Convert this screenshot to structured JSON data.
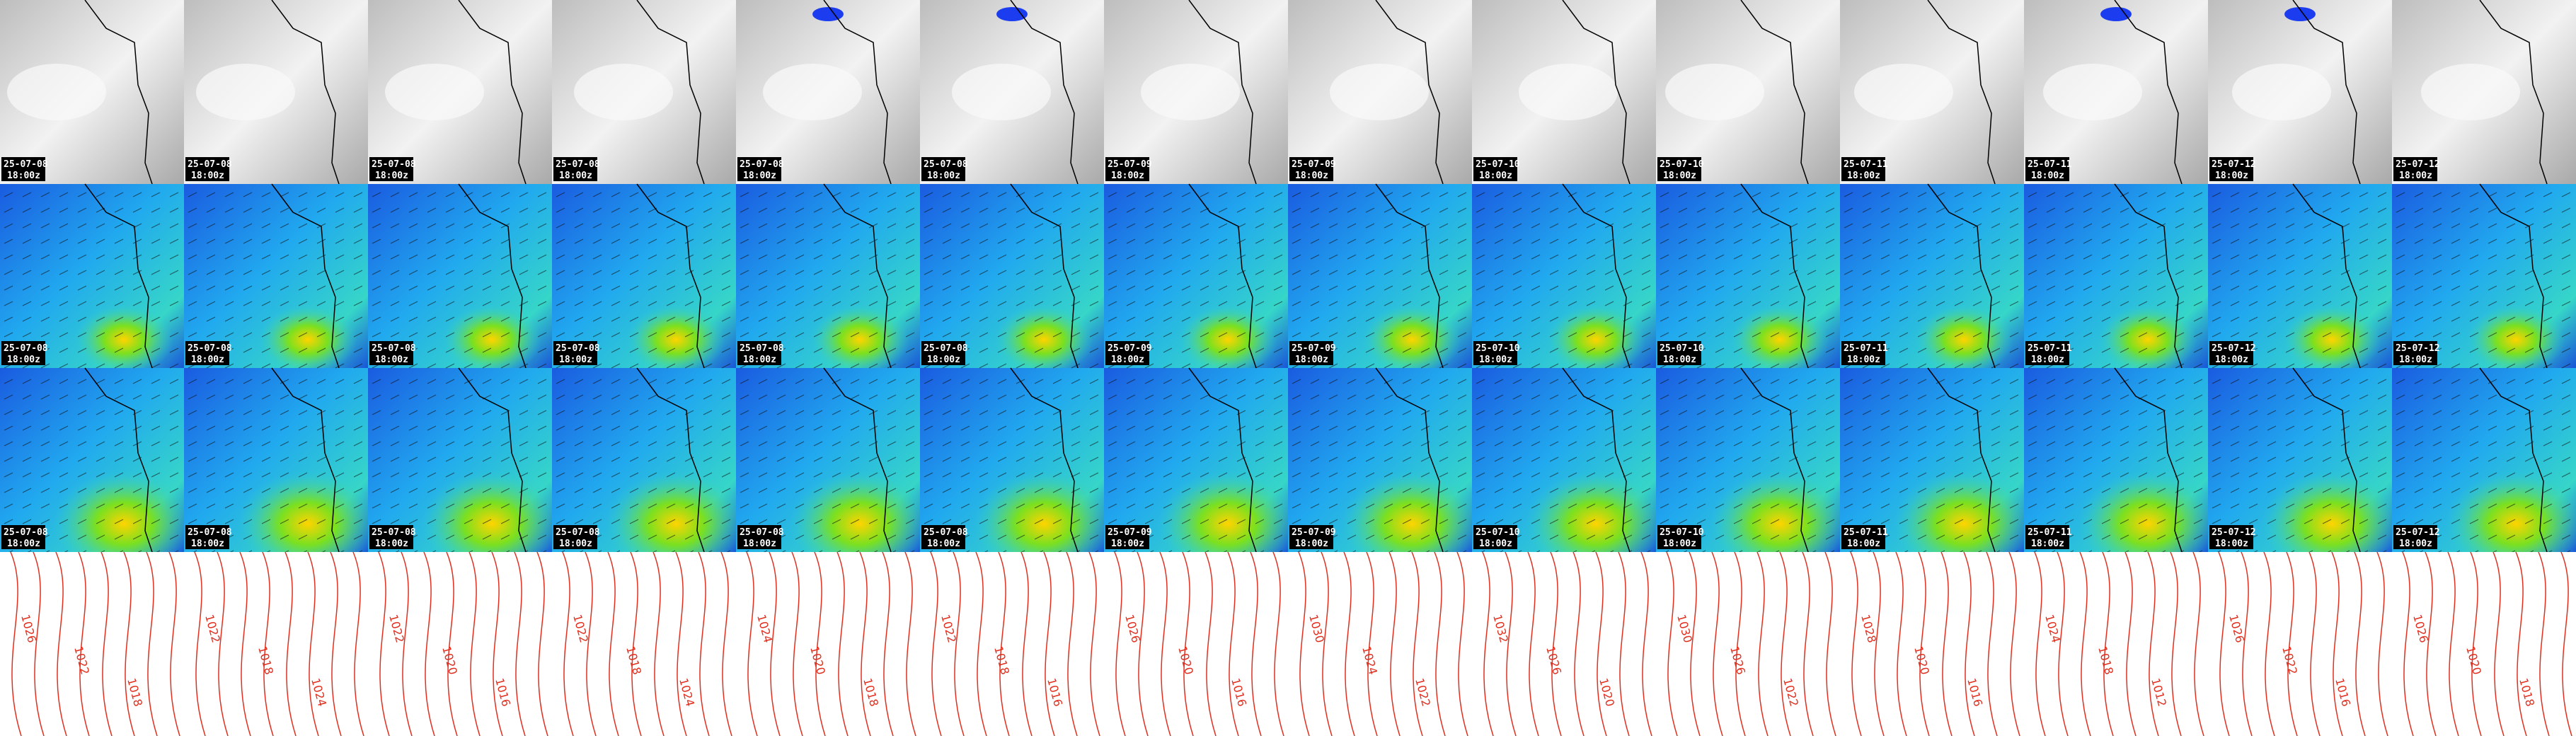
{
  "panels": {
    "dates": [
      "25-07-08",
      "25-07-08",
      "25-07-08",
      "25-07-08",
      "25-07-08",
      "25-07-08",
      "25-07-09",
      "25-07-09",
      "25-07-10",
      "25-07-10",
      "25-07-11",
      "25-07-11",
      "25-07-12",
      "25-07-12"
    ],
    "times": [
      "18:00z",
      "18:00z",
      "18:00z",
      "18:00z",
      "18:00z",
      "18:00z",
      "18:00z",
      "18:00z",
      "18:00z",
      "18:00z",
      "18:00z",
      "18:00z",
      "18:00z",
      "18:00z"
    ]
  },
  "isobars": [
    [
      "1026",
      "1022",
      "1018"
    ],
    [
      "1022",
      "1018",
      "1024"
    ],
    [
      "1022",
      "1020",
      "1016"
    ],
    [
      "1022",
      "1018",
      "1024"
    ],
    [
      "1024",
      "1020",
      "1018"
    ],
    [
      "1022",
      "1018",
      "1016"
    ],
    [
      "1026",
      "1020",
      "1016"
    ],
    [
      "1030",
      "1024",
      "1022"
    ],
    [
      "1032",
      "1026",
      "1020"
    ],
    [
      "1030",
      "1026",
      "1022"
    ],
    [
      "1028",
      "1020",
      "1016"
    ],
    [
      "1024",
      "1018",
      "1012"
    ],
    [
      "1026",
      "1022",
      "1016"
    ],
    [
      "1026",
      "1020",
      "1018"
    ]
  ]
}
